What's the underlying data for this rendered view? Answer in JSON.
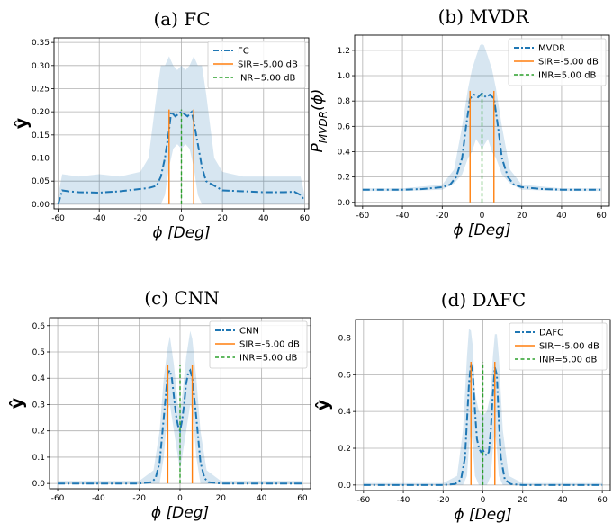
{
  "figure": {
    "xlabel": "ϕ [Deg]"
  },
  "chart_data": [
    {
      "type": "line",
      "title": "(a) FC",
      "xlabel": "ϕ [Deg]",
      "ylabel": "ŷ",
      "xlim": [
        -62,
        62
      ],
      "ylim": [
        -0.01,
        0.36
      ],
      "xticks": [
        -60,
        -40,
        -20,
        0,
        20,
        40,
        60
      ],
      "yticks": [
        0.0,
        0.05,
        0.1,
        0.15,
        0.2,
        0.25,
        0.3,
        0.35
      ],
      "ytick_labels": [
        "0.00",
        "0.05",
        "0.10",
        "0.15",
        "0.20",
        "0.25",
        "0.30",
        "0.35"
      ],
      "grid": true,
      "legend_position": "top-right",
      "series": [
        {
          "name": "FC",
          "style": "dashdot",
          "color": "#1f77b4",
          "x": [
            -60,
            -58,
            -55,
            -50,
            -40,
            -30,
            -20,
            -16,
            -12,
            -10,
            -8,
            -6,
            -5,
            -3,
            0,
            3,
            5,
            6,
            8,
            10,
            12,
            16,
            20,
            30,
            40,
            50,
            55,
            58,
            60
          ],
          "y": [
            0.0,
            0.03,
            0.028,
            0.026,
            0.025,
            0.028,
            0.033,
            0.035,
            0.04,
            0.06,
            0.1,
            0.16,
            0.2,
            0.19,
            0.2,
            0.19,
            0.2,
            0.18,
            0.13,
            0.08,
            0.05,
            0.04,
            0.03,
            0.028,
            0.026,
            0.026,
            0.027,
            0.02,
            0.008
          ]
        },
        {
          "name": "SIR=-5.00 dB",
          "style": "solid",
          "color": "#ff7f0e",
          "stems": [
            -6,
            6
          ],
          "height": 0.205
        },
        {
          "name": "INR=5.00 dB",
          "style": "dashed",
          "color": "#2ca02c",
          "stems": [
            0
          ],
          "height": 0.205
        }
      ],
      "band": {
        "x": [
          -60,
          -58,
          -50,
          -40,
          -30,
          -20,
          -16,
          -12,
          -10,
          -8,
          -6,
          -4,
          -2,
          0,
          2,
          4,
          6,
          8,
          10,
          12,
          16,
          20,
          30,
          40,
          50,
          58,
          60
        ],
        "upper": [
          0.02,
          0.065,
          0.06,
          0.065,
          0.06,
          0.07,
          0.1,
          0.24,
          0.3,
          0.3,
          0.32,
          0.3,
          0.29,
          0.3,
          0.29,
          0.3,
          0.32,
          0.3,
          0.3,
          0.24,
          0.1,
          0.07,
          0.06,
          0.06,
          0.06,
          0.06,
          0.02
        ],
        "lower": [
          0.0,
          0.0,
          0.0,
          0.0,
          0.0,
          0.0,
          0.0,
          0.0,
          0.0,
          0.02,
          0.08,
          0.12,
          0.13,
          0.12,
          0.13,
          0.12,
          0.08,
          0.02,
          0.0,
          0.0,
          0.0,
          0.0,
          0.0,
          0.0,
          0.0,
          0.0,
          0.0
        ]
      }
    },
    {
      "type": "line",
      "title": "(b) MVDR",
      "xlabel": "ϕ [Deg]",
      "ylabel": "P_MVDR(ϕ)",
      "xlim": [
        -64,
        64
      ],
      "ylim": [
        -0.03,
        1.32
      ],
      "xticks": [
        -60,
        -40,
        -20,
        0,
        20,
        40,
        60
      ],
      "yticks": [
        0.0,
        0.2,
        0.4,
        0.6,
        0.8,
        1.0,
        1.2
      ],
      "ytick_labels": [
        "0.0",
        "0.2",
        "0.4",
        "0.6",
        "0.8",
        "1.0",
        "1.2"
      ],
      "grid": true,
      "legend_position": "top-right",
      "series": [
        {
          "name": "MVDR",
          "style": "dashdot",
          "color": "#1f77b4",
          "x": [
            -60,
            -40,
            -30,
            -20,
            -16,
            -13,
            -10,
            -8,
            -6,
            -4,
            -2,
            0,
            2,
            4,
            6,
            8,
            10,
            13,
            16,
            20,
            30,
            40,
            60
          ],
          "y": [
            0.1,
            0.1,
            0.105,
            0.12,
            0.14,
            0.2,
            0.35,
            0.6,
            0.82,
            0.85,
            0.83,
            0.86,
            0.83,
            0.85,
            0.82,
            0.6,
            0.35,
            0.2,
            0.14,
            0.12,
            0.105,
            0.1,
            0.1
          ]
        },
        {
          "name": "SIR=-5.00 dB",
          "style": "solid",
          "color": "#ff7f0e",
          "stems": [
            -6,
            6
          ],
          "height": 0.88
        },
        {
          "name": "INR=5.00 dB",
          "style": "dashed",
          "color": "#2ca02c",
          "stems": [
            0
          ],
          "height": 0.88
        }
      ],
      "band": {
        "x": [
          -60,
          -40,
          -20,
          -14,
          -10,
          -7,
          -5,
          -3,
          -1,
          0,
          1,
          3,
          5,
          7,
          10,
          14,
          20,
          40,
          60
        ],
        "upper": [
          0.11,
          0.11,
          0.14,
          0.26,
          0.6,
          0.9,
          1.05,
          1.15,
          1.24,
          1.25,
          1.24,
          1.15,
          1.05,
          0.9,
          0.6,
          0.26,
          0.14,
          0.11,
          0.11
        ],
        "lower": [
          0.09,
          0.09,
          0.1,
          0.15,
          0.22,
          0.35,
          0.4,
          0.5,
          0.45,
          0.42,
          0.45,
          0.5,
          0.4,
          0.35,
          0.22,
          0.15,
          0.1,
          0.09,
          0.09
        ]
      }
    },
    {
      "type": "line",
      "title": "(c) CNN",
      "xlabel": "ϕ [Deg]",
      "ylabel": "ŷ",
      "xlim": [
        -64,
        64
      ],
      "ylim": [
        -0.02,
        0.63
      ],
      "xticks": [
        -60,
        -40,
        -20,
        0,
        20,
        40,
        60
      ],
      "yticks": [
        0.0,
        0.1,
        0.2,
        0.3,
        0.4,
        0.5,
        0.6
      ],
      "ytick_labels": [
        "0.0",
        "0.1",
        "0.2",
        "0.3",
        "0.4",
        "0.5",
        "0.6"
      ],
      "grid": true,
      "legend_position": "top-right",
      "series": [
        {
          "name": "CNN",
          "style": "dashdot",
          "color": "#1f77b4",
          "x": [
            -60,
            -40,
            -20,
            -14,
            -12,
            -10,
            -8,
            -6,
            -5,
            -4,
            -3,
            -2,
            -1,
            0,
            1,
            2,
            3,
            4,
            5,
            6,
            8,
            10,
            12,
            14,
            20,
            40,
            60
          ],
          "y": [
            0.0,
            0.0,
            0.0,
            0.005,
            0.02,
            0.08,
            0.25,
            0.42,
            0.43,
            0.4,
            0.33,
            0.26,
            0.22,
            0.2,
            0.24,
            0.3,
            0.38,
            0.42,
            0.43,
            0.4,
            0.25,
            0.08,
            0.02,
            0.005,
            0.0,
            0.0,
            0.0
          ]
        },
        {
          "name": "SIR=-5.00 dB",
          "style": "solid",
          "color": "#ff7f0e",
          "stems": [
            -6,
            6
          ],
          "height": 0.45
        },
        {
          "name": "INR=5.00 dB",
          "style": "dashed",
          "color": "#2ca02c",
          "stems": [
            0
          ],
          "height": 0.45
        }
      ],
      "band": {
        "x": [
          -60,
          -20,
          -13,
          -10,
          -8,
          -6,
          -5,
          -3,
          -1,
          0,
          1,
          3,
          5,
          6,
          8,
          10,
          13,
          20,
          60
        ],
        "upper": [
          0.01,
          0.01,
          0.05,
          0.2,
          0.4,
          0.52,
          0.56,
          0.45,
          0.3,
          0.28,
          0.33,
          0.48,
          0.58,
          0.55,
          0.4,
          0.2,
          0.05,
          0.01,
          0.01
        ],
        "lower": [
          0.0,
          0.0,
          0.0,
          0.0,
          0.1,
          0.28,
          0.3,
          0.2,
          0.1,
          0.05,
          0.1,
          0.2,
          0.3,
          0.28,
          0.1,
          0.0,
          0.0,
          0.0,
          0.0
        ]
      }
    },
    {
      "type": "line",
      "title": "(d) DAFC",
      "xlabel": "ϕ [Deg]",
      "ylabel": "ŷ",
      "xlim": [
        -64,
        64
      ],
      "ylim": [
        -0.03,
        0.9
      ],
      "xticks": [
        -60,
        -40,
        -20,
        0,
        20,
        40,
        60
      ],
      "yticks": [
        0.0,
        0.2,
        0.4,
        0.6,
        0.8
      ],
      "ytick_labels": [
        "0.0",
        "0.2",
        "0.4",
        "0.6",
        "0.8"
      ],
      "grid": true,
      "legend_position": "top-right",
      "series": [
        {
          "name": "DAFC",
          "style": "dashdot",
          "color": "#1f77b4",
          "x": [
            -60,
            -40,
            -20,
            -14,
            -11,
            -9,
            -8,
            -7,
            -6,
            -5,
            -4,
            -3,
            -2,
            -1,
            0,
            1,
            2,
            3,
            4,
            5,
            6,
            7,
            8,
            9,
            11,
            14,
            20,
            40,
            60
          ],
          "y": [
            0.0,
            0.0,
            0.0,
            0.005,
            0.03,
            0.15,
            0.35,
            0.55,
            0.66,
            0.6,
            0.4,
            0.25,
            0.2,
            0.18,
            0.19,
            0.17,
            0.16,
            0.18,
            0.3,
            0.5,
            0.64,
            0.6,
            0.35,
            0.15,
            0.03,
            0.005,
            0.0,
            0.0,
            0.0
          ]
        },
        {
          "name": "SIR=-5.00 dB",
          "style": "solid",
          "color": "#ff7f0e",
          "stems": [
            -6,
            6
          ],
          "height": 0.67
        },
        {
          "name": "INR=5.00 dB",
          "style": "dashed",
          "color": "#2ca02c",
          "stems": [
            0
          ],
          "height": 0.67
        }
      ],
      "band": {
        "x": [
          -60,
          -20,
          -13,
          -10,
          -8,
          -7,
          -6,
          -5,
          -4,
          -2,
          0,
          2,
          4,
          5,
          6,
          7,
          8,
          10,
          13,
          20,
          60
        ],
        "upper": [
          0.01,
          0.01,
          0.05,
          0.3,
          0.7,
          0.85,
          0.84,
          0.75,
          0.5,
          0.4,
          0.38,
          0.4,
          0.5,
          0.7,
          0.82,
          0.82,
          0.7,
          0.3,
          0.05,
          0.01,
          0.01
        ],
        "lower": [
          0.0,
          0.0,
          0.0,
          0.0,
          0.05,
          0.2,
          0.3,
          0.2,
          0.05,
          0.0,
          0.0,
          0.0,
          0.05,
          0.2,
          0.3,
          0.2,
          0.05,
          0.0,
          0.0,
          0.0,
          0.0
        ]
      }
    }
  ]
}
